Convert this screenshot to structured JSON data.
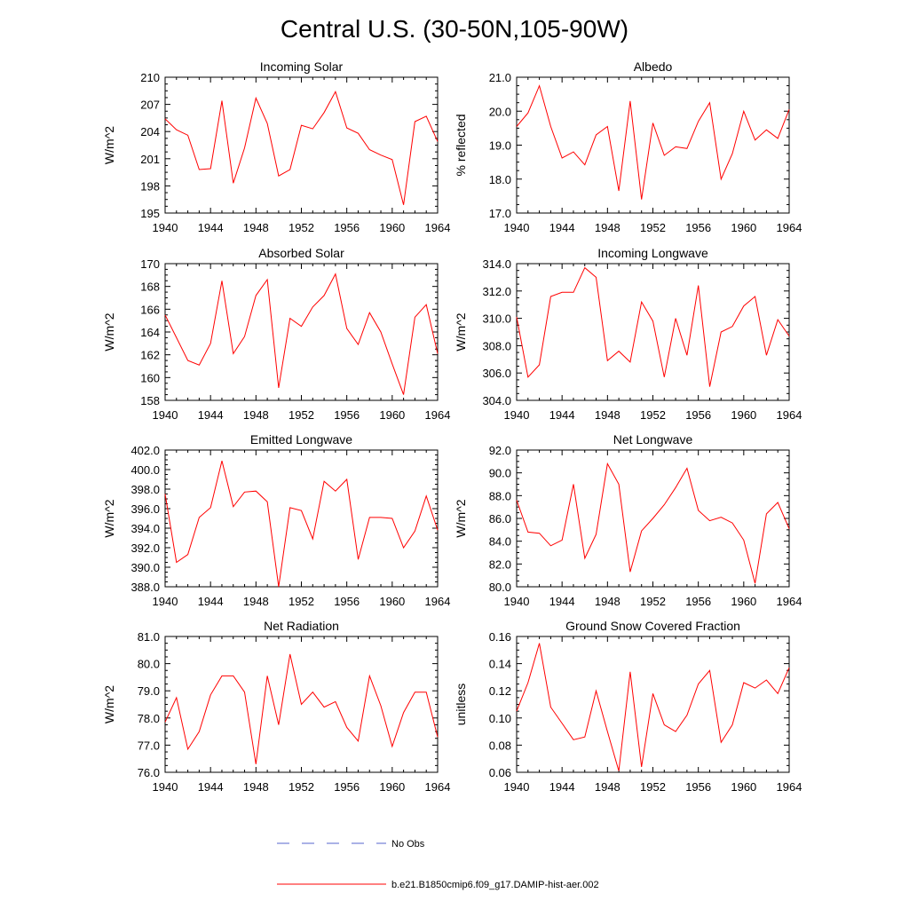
{
  "figure": {
    "title": "Central U.S. (30-50N,105-90W)",
    "legend": [
      {
        "label": "No Obs",
        "color": "#5566cc",
        "style": "dashed"
      },
      {
        "label": "b.e21.B1850cmip6.f09_g17.DAMIP-hist-aer.002",
        "color": "#ff0000",
        "style": "solid"
      }
    ]
  },
  "chart_data": [
    {
      "type": "line",
      "title": "Incoming Solar",
      "xlabel": "",
      "ylabel": "W/m^2",
      "xlim": [
        1940,
        1964
      ],
      "ylim": [
        195,
        210
      ],
      "xticks": [
        "1940",
        "1944",
        "1948",
        "1952",
        "1956",
        "1960",
        "1964"
      ],
      "yticks": [
        "195",
        "198",
        "201",
        "204",
        "207",
        "210"
      ],
      "x": [
        1940,
        1941,
        1942,
        1943,
        1944,
        1945,
        1946,
        1947,
        1948,
        1949,
        1950,
        1951,
        1952,
        1953,
        1954,
        1955,
        1956,
        1957,
        1958,
        1959,
        1960,
        1961,
        1962,
        1963,
        1964
      ],
      "series": [
        {
          "color": "#ff0000",
          "values": [
            205.4,
            204.2,
            203.6,
            199.8,
            199.9,
            207.4,
            198.3,
            202.2,
            207.7,
            204.9,
            199.1,
            199.8,
            204.7,
            204.3,
            206.1,
            208.4,
            204.4,
            203.8,
            202.0,
            201.4,
            200.9,
            195.9,
            205.1,
            205.7,
            202.9
          ]
        }
      ]
    },
    {
      "type": "line",
      "title": "Albedo",
      "xlabel": "",
      "ylabel": "% reflected",
      "xlim": [
        1940,
        1964
      ],
      "ylim": [
        17.0,
        21.0
      ],
      "xticks": [
        "1940",
        "1944",
        "1948",
        "1952",
        "1956",
        "1960",
        "1964"
      ],
      "yticks": [
        "17.0",
        "18.0",
        "19.0",
        "20.0",
        "21.0"
      ],
      "x": [
        1940,
        1941,
        1942,
        1943,
        1944,
        1945,
        1946,
        1947,
        1948,
        1949,
        1950,
        1951,
        1952,
        1953,
        1954,
        1955,
        1956,
        1957,
        1958,
        1959,
        1960,
        1961,
        1962,
        1963,
        1964
      ],
      "series": [
        {
          "color": "#ff0000",
          "values": [
            19.55,
            19.95,
            20.75,
            19.55,
            18.62,
            18.8,
            18.42,
            19.3,
            19.55,
            17.65,
            20.3,
            17.4,
            19.65,
            18.7,
            18.95,
            18.9,
            19.7,
            20.25,
            18.0,
            18.75,
            20.0,
            19.15,
            19.45,
            19.2,
            20.05
          ]
        }
      ]
    },
    {
      "type": "line",
      "title": "Absorbed Solar",
      "xlabel": "",
      "ylabel": "W/m^2",
      "xlim": [
        1940,
        1964
      ],
      "ylim": [
        158,
        170
      ],
      "xticks": [
        "1940",
        "1944",
        "1948",
        "1952",
        "1956",
        "1960",
        "1964"
      ],
      "yticks": [
        "158",
        "160",
        "162",
        "164",
        "166",
        "168",
        "170"
      ],
      "x": [
        1940,
        1941,
        1942,
        1943,
        1944,
        1945,
        1946,
        1947,
        1948,
        1949,
        1950,
        1951,
        1952,
        1953,
        1954,
        1955,
        1956,
        1957,
        1958,
        1959,
        1960,
        1961,
        1962,
        1963,
        1964
      ],
      "series": [
        {
          "color": "#ff0000",
          "values": [
            165.5,
            163.5,
            161.5,
            161.1,
            163.0,
            168.5,
            162.1,
            163.6,
            167.2,
            168.6,
            159.1,
            165.2,
            164.5,
            166.2,
            167.2,
            169.1,
            164.3,
            162.9,
            165.7,
            164.0,
            161.2,
            158.5,
            165.3,
            166.4,
            162.1
          ]
        }
      ]
    },
    {
      "type": "line",
      "title": "Incoming Longwave",
      "xlabel": "",
      "ylabel": "W/m^2",
      "xlim": [
        1940,
        1964
      ],
      "ylim": [
        304.0,
        314.0
      ],
      "xticks": [
        "1940",
        "1944",
        "1948",
        "1952",
        "1956",
        "1960",
        "1964"
      ],
      "yticks": [
        "304.0",
        "306.0",
        "308.0",
        "310.0",
        "312.0",
        "314.0"
      ],
      "x": [
        1940,
        1941,
        1942,
        1943,
        1944,
        1945,
        1946,
        1947,
        1948,
        1949,
        1950,
        1951,
        1952,
        1953,
        1954,
        1955,
        1956,
        1957,
        1958,
        1959,
        1960,
        1961,
        1962,
        1963,
        1964
      ],
      "series": [
        {
          "color": "#ff0000",
          "values": [
            310.1,
            305.7,
            306.6,
            311.6,
            311.9,
            311.9,
            313.7,
            313.0,
            306.9,
            307.6,
            306.8,
            311.2,
            309.8,
            305.7,
            310.0,
            307.3,
            312.4,
            305.0,
            309.0,
            309.4,
            310.9,
            311.6,
            307.3,
            309.9,
            308.7
          ]
        }
      ]
    },
    {
      "type": "line",
      "title": "Emitted Longwave",
      "xlabel": "",
      "ylabel": "W/m^2",
      "xlim": [
        1940,
        1964
      ],
      "ylim": [
        388.0,
        402.0
      ],
      "xticks": [
        "1940",
        "1944",
        "1948",
        "1952",
        "1956",
        "1960",
        "1964"
      ],
      "yticks": [
        "388.0",
        "390.0",
        "392.0",
        "394.0",
        "396.0",
        "398.0",
        "400.0",
        "402.0"
      ],
      "x": [
        1940,
        1941,
        1942,
        1943,
        1944,
        1945,
        1946,
        1947,
        1948,
        1949,
        1950,
        1951,
        1952,
        1953,
        1954,
        1955,
        1956,
        1957,
        1958,
        1959,
        1960,
        1961,
        1962,
        1963,
        1964
      ],
      "series": [
        {
          "color": "#ff0000",
          "values": [
            397.5,
            390.5,
            391.3,
            395.1,
            396.1,
            400.9,
            396.2,
            397.7,
            397.8,
            396.7,
            388.0,
            396.1,
            395.8,
            392.9,
            398.8,
            397.8,
            399.0,
            390.8,
            395.1,
            395.1,
            395.0,
            392.0,
            393.7,
            397.3,
            393.8
          ]
        }
      ]
    },
    {
      "type": "line",
      "title": "Net Longwave",
      "xlabel": "",
      "ylabel": "W/m^2",
      "xlim": [
        1940,
        1964
      ],
      "ylim": [
        80.0,
        92.0
      ],
      "xticks": [
        "1940",
        "1944",
        "1948",
        "1952",
        "1956",
        "1960",
        "1964"
      ],
      "yticks": [
        "80.0",
        "82.0",
        "84.0",
        "86.0",
        "88.0",
        "90.0",
        "92.0"
      ],
      "x": [
        1940,
        1941,
        1942,
        1943,
        1944,
        1945,
        1946,
        1947,
        1948,
        1949,
        1950,
        1951,
        1952,
        1953,
        1954,
        1955,
        1956,
        1957,
        1958,
        1959,
        1960,
        1961,
        1962,
        1963,
        1964
      ],
      "series": [
        {
          "color": "#ff0000",
          "values": [
            87.6,
            84.8,
            84.7,
            83.6,
            84.1,
            89.0,
            82.5,
            84.6,
            90.8,
            89.0,
            81.3,
            84.9,
            86.0,
            87.2,
            88.7,
            90.4,
            86.7,
            85.8,
            86.1,
            85.6,
            84.1,
            80.3,
            86.4,
            87.4,
            85.1
          ]
        }
      ]
    },
    {
      "type": "line",
      "title": "Net Radiation",
      "xlabel": "",
      "ylabel": "W/m^2",
      "xlim": [
        1940,
        1964
      ],
      "ylim": [
        76.0,
        81.0
      ],
      "xticks": [
        "1940",
        "1944",
        "1948",
        "1952",
        "1956",
        "1960",
        "1964"
      ],
      "yticks": [
        "76.0",
        "77.0",
        "78.0",
        "79.0",
        "80.0",
        "81.0"
      ],
      "x": [
        1940,
        1941,
        1942,
        1943,
        1944,
        1945,
        1946,
        1947,
        1948,
        1949,
        1950,
        1951,
        1952,
        1953,
        1954,
        1955,
        1956,
        1957,
        1958,
        1959,
        1960,
        1961,
        1962,
        1963,
        1964
      ],
      "series": [
        {
          "color": "#ff0000",
          "values": [
            77.85,
            78.75,
            76.85,
            77.5,
            78.85,
            79.55,
            79.55,
            78.95,
            76.3,
            79.55,
            77.75,
            80.35,
            78.5,
            78.95,
            78.4,
            78.6,
            77.65,
            77.15,
            79.55,
            78.45,
            76.95,
            78.2,
            78.95,
            78.95,
            77.3
          ]
        }
      ]
    },
    {
      "type": "line",
      "title": "Ground Snow Covered Fraction",
      "xlabel": "",
      "ylabel": "unitless",
      "xlim": [
        1940,
        1964
      ],
      "ylim": [
        0.06,
        0.16
      ],
      "xticks": [
        "1940",
        "1944",
        "1948",
        "1952",
        "1956",
        "1960",
        "1964"
      ],
      "yticks": [
        "0.06",
        "0.08",
        "0.10",
        "0.12",
        "0.14",
        "0.16"
      ],
      "x": [
        1940,
        1941,
        1942,
        1943,
        1944,
        1945,
        1946,
        1947,
        1948,
        1949,
        1950,
        1951,
        1952,
        1953,
        1954,
        1955,
        1956,
        1957,
        1958,
        1959,
        1960,
        1961,
        1962,
        1963,
        1964
      ],
      "series": [
        {
          "color": "#ff0000",
          "values": [
            0.105,
            0.126,
            0.155,
            0.108,
            0.096,
            0.084,
            0.086,
            0.12,
            0.09,
            0.061,
            0.134,
            0.064,
            0.118,
            0.095,
            0.09,
            0.102,
            0.125,
            0.135,
            0.082,
            0.095,
            0.126,
            0.122,
            0.128,
            0.118,
            0.137
          ]
        }
      ]
    }
  ]
}
